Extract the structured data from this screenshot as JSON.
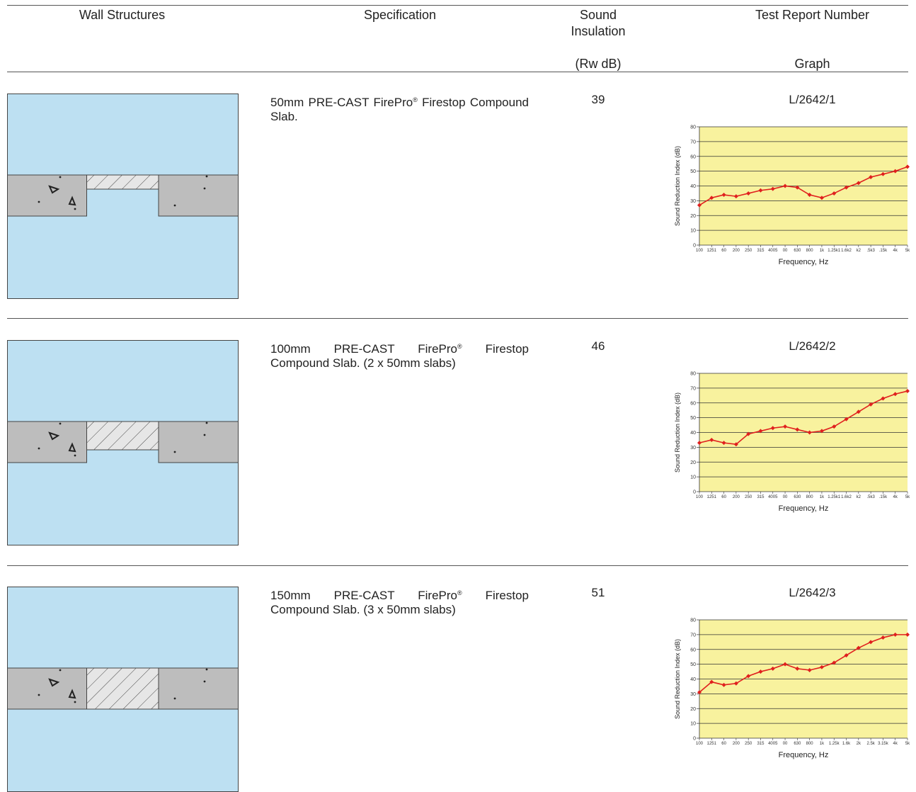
{
  "header": {
    "col_wall": "Wall Structures",
    "col_spec": "Specification",
    "col_sound_1": "Sound",
    "col_sound_2": "Insulation",
    "col_sound_unit": "(Rw dB)",
    "col_report": "Test Report Number",
    "col_graph": "Graph"
  },
  "rows": [
    {
      "spec_a": "50mm PRE-CAST FirePro",
      "reg": "®",
      "spec_b": " Firestop Compound Slab.",
      "rw": "39",
      "report": "L/2642/1"
    },
    {
      "spec_a": "100mm PRE-CAST FirePro",
      "reg": "®",
      "spec_b": " Firestop Compound Slab. (2 x 50mm slabs)",
      "rw": "46",
      "report": "L/2642/2"
    },
    {
      "spec_a": "150mm PRE-CAST FirePro",
      "reg": "®",
      "spec_b": " Firestop Compound Slab. (3 x 50mm slabs)",
      "rw": "51",
      "report": "L/2642/3"
    }
  ],
  "colors": {
    "wall_bg": "#bde0f2",
    "block": "#bdbdbd",
    "plot_bg": "#f8f29e",
    "series": "#e0201e"
  },
  "chart_data": [
    {
      "type": "line",
      "xlabel": "Frequency, Hz",
      "ylabel": "Sound Reduction Index (dB)",
      "ylim": [
        0,
        80
      ],
      "yticks": [
        "0",
        "10",
        "20",
        "30",
        "40",
        "50",
        "60",
        "70",
        "80"
      ],
      "categories": [
        "100",
        "1251",
        "60",
        "200",
        "250",
        "315",
        "4005",
        "00",
        "630",
        "800",
        "1k",
        "1.25k1",
        "1.6k2",
        "k2",
        ".5k3",
        ".15k",
        "4k",
        "5k"
      ],
      "values": [
        27,
        32,
        34,
        33,
        35,
        37,
        38,
        40,
        39,
        34,
        32,
        35,
        39,
        42,
        46,
        48,
        50,
        53
      ]
    },
    {
      "type": "line",
      "xlabel": "Frequency, Hz",
      "ylabel": "Sound Reduction Index (dB)",
      "ylim": [
        0,
        80
      ],
      "yticks": [
        "0",
        "10",
        "20",
        "30",
        "40",
        "50",
        "60",
        "70",
        "80"
      ],
      "categories": [
        "100",
        "1251",
        "60",
        "200",
        "250",
        "315",
        "4005",
        "00",
        "630",
        "800",
        "1k",
        "1.25k1",
        "1.6k2",
        "k2",
        ".5k3",
        ".15k",
        "4k",
        "5k"
      ],
      "values": [
        33,
        35,
        33,
        32,
        39,
        41,
        43,
        44,
        42,
        40,
        41,
        44,
        49,
        54,
        59,
        63,
        66,
        68
      ]
    },
    {
      "type": "line",
      "xlabel": "Frequency, Hz",
      "ylabel": "Sound Reduction Index (dB)",
      "ylim": [
        0,
        80
      ],
      "yticks": [
        "0",
        "10",
        "20",
        "30",
        "40",
        "50",
        "60",
        "70",
        "80"
      ],
      "categories": [
        "100",
        "1251",
        "60",
        "200",
        "250",
        "315",
        "4005",
        "00",
        "630",
        "800",
        "1k",
        "1.25k",
        "1.6k",
        "2k",
        "2.5k",
        "3.15k",
        "4k",
        "5k"
      ],
      "values": [
        31,
        38,
        36,
        37,
        42,
        45,
        47,
        50,
        47,
        46,
        48,
        51,
        56,
        61,
        65,
        68,
        70,
        70
      ]
    }
  ]
}
